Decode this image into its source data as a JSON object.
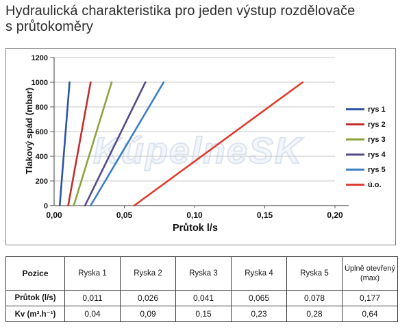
{
  "page": {
    "title_lines": [
      "Hydraulická charakteristika pro jeden výstup rozdělovače",
      "s průtokoměry"
    ]
  },
  "watermark": "KúpelneSK",
  "chart_data": {
    "type": "line",
    "title": "",
    "xlabel": "Průtok l/s",
    "ylabel": "Tlakový spád (mbar)",
    "xlim": [
      0,
      0.21
    ],
    "ylim": [
      0,
      1200
    ],
    "x_tick_values": [
      0,
      0.05,
      0.1,
      0.15,
      0.2
    ],
    "x_tick_labels": [
      "0,00",
      "0,05",
      "0,10",
      "0,15",
      "0,20"
    ],
    "y_tick_values": [
      0,
      200,
      400,
      600,
      800,
      1000,
      1200
    ],
    "y_tick_labels": [
      "0",
      "200",
      "400",
      "600",
      "800",
      "1000",
      "1200"
    ],
    "grid": "horizontal",
    "legend_position": "right",
    "series": [
      {
        "name": "rys 1",
        "color": "#2B54A3",
        "points": [
          [
            0.004,
            0
          ],
          [
            0.011,
            1000
          ]
        ]
      },
      {
        "name": "rys 2",
        "color": "#C22E2E",
        "points": [
          [
            0.01,
            0
          ],
          [
            0.026,
            1000
          ]
        ]
      },
      {
        "name": "rys 3",
        "color": "#8CA23C",
        "points": [
          [
            0.014,
            0
          ],
          [
            0.041,
            1000
          ]
        ]
      },
      {
        "name": "rys 4",
        "color": "#564A87",
        "points": [
          [
            0.022,
            0
          ],
          [
            0.065,
            1000
          ]
        ]
      },
      {
        "name": "rys 5",
        "color": "#3D7DC1",
        "points": [
          [
            0.026,
            0
          ],
          [
            0.078,
            1000
          ]
        ]
      },
      {
        "name": "ú.o.",
        "color": "#E03C2D",
        "points": [
          [
            0.057,
            0
          ],
          [
            0.177,
            1000
          ]
        ]
      }
    ],
    "colors": {
      "gridline": "#c6c6c6",
      "axis": "#595959",
      "tick_label": "#111111"
    }
  },
  "table": {
    "headers": [
      "Pozice",
      "Ryska 1",
      "Ryska 2",
      "Ryska 3",
      "Ryska 4",
      "Ryska 5",
      "Úplně otevřený (max)"
    ],
    "rows": [
      {
        "label": "Průtok (l/s)",
        "values": [
          "0,011",
          "0,026",
          "0,041",
          "0,065",
          "0,078",
          "0,177"
        ]
      },
      {
        "label": "Kv (m³.h⁻¹)",
        "values": [
          "0,04",
          "0,09",
          "0,15",
          "0,23",
          "0,28",
          "0,64"
        ]
      }
    ]
  }
}
